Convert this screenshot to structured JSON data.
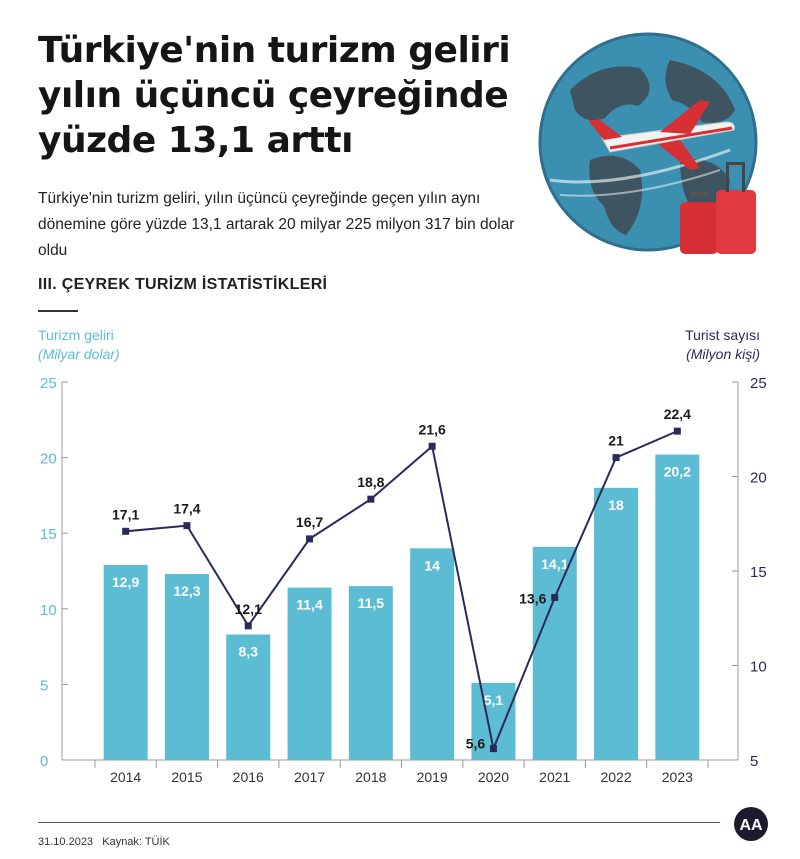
{
  "title_lines": [
    "Türkiye'nin turizm geliri",
    "yılın üçüncü çeyreğinde",
    "yüzde 13,1 arttı"
  ],
  "subtitle": "Türkiye'nin turizm geliri, yılın üçüncü çeyreğinde geçen yılın aynı dönemine göre yüzde 13,1 artarak 20 milyar 225 milyon 317 bin dolar oldu",
  "section_title": "III. ÇEYREK TURİZM İSTATİSTİKLERİ",
  "footer": {
    "date": "31.10.2023",
    "source": "Kaynak: TÜİK"
  },
  "logo_text": "AA",
  "colors": {
    "bar": "#5cbcd3",
    "line": "#2a2a5a",
    "left_axis": "#5cbcd3",
    "right_axis": "#2a2a5a"
  },
  "chart_data": {
    "type": "bar",
    "categories": [
      "2014",
      "2015",
      "2016",
      "2017",
      "2018",
      "2019",
      "2020",
      "2021",
      "2022",
      "2023"
    ],
    "series": [
      {
        "name": "Turizm geliri",
        "type": "bar",
        "axis": "left",
        "values": [
          12.9,
          12.3,
          8.3,
          11.4,
          11.5,
          14,
          5.1,
          14.1,
          18,
          20.2
        ],
        "labels": [
          "12,9",
          "12,3",
          "8,3",
          "11,4",
          "11,5",
          "14",
          "5,1",
          "14,1",
          "18",
          "20,2"
        ]
      },
      {
        "name": "Turist sayısı",
        "type": "line",
        "axis": "right",
        "values": [
          17.1,
          17.4,
          12.1,
          16.7,
          18.8,
          21.6,
          5.6,
          13.6,
          21,
          22.4
        ],
        "labels": [
          "17,1",
          "17,4",
          "12,1",
          "16,7",
          "18,8",
          "21,6",
          "5,6",
          "13,6",
          "21",
          "22,4"
        ]
      }
    ],
    "y_left": {
      "label": "Turizm geliri",
      "unit": "(Milyar dolar)",
      "ticks": [
        "0",
        "5",
        "10",
        "15",
        "20",
        "25"
      ],
      "range": [
        0,
        25
      ]
    },
    "y_right": {
      "label": "Turist sayısı",
      "unit": "(Milyon kişi)",
      "ticks": [
        "5",
        "10",
        "15",
        "20",
        "25"
      ],
      "range": [
        5,
        25
      ]
    },
    "grid": false,
    "legend": "none"
  }
}
